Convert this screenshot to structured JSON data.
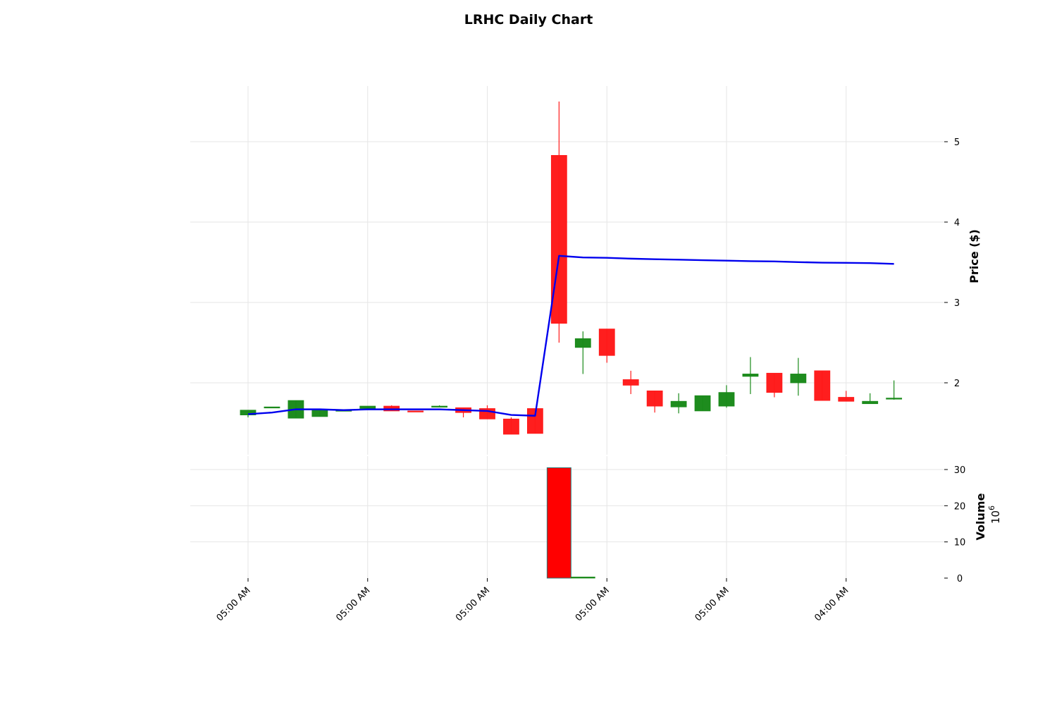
{
  "chart_data": {
    "type": "candlestick",
    "title": "LRHC Daily Chart",
    "price_panel": {
      "ylabel": "Price ($)",
      "ylim": [
        1.35,
        5.7
      ],
      "yticks": [
        2,
        3,
        4,
        5
      ],
      "grid": true,
      "axis_side": "right"
    },
    "volume_panel": {
      "ylabel": "Volume",
      "exponent_label": "10",
      "exponent_power": "6",
      "ylim": [
        0,
        31
      ],
      "yticks": [
        0,
        10,
        20,
        30
      ],
      "grid": true,
      "axis_side": "right"
    },
    "x_ticks": [
      {
        "index": 0,
        "label": "05:00 AM"
      },
      {
        "index": 5,
        "label": "05:00 AM"
      },
      {
        "index": 10,
        "label": "05:00 AM"
      },
      {
        "index": 15,
        "label": "05:00 AM"
      },
      {
        "index": 20,
        "label": "05:00 AM"
      },
      {
        "index": 25,
        "label": "04:00 AM"
      }
    ],
    "candles": [
      {
        "o": 1.6,
        "h": 1.66,
        "l": 1.57,
        "c": 1.66
      },
      {
        "o": 1.7,
        "h": 1.7,
        "l": 1.7,
        "c": 1.7
      },
      {
        "o": 1.56,
        "h": 1.78,
        "l": 1.56,
        "c": 1.78
      },
      {
        "o": 1.58,
        "h": 1.67,
        "l": 1.58,
        "c": 1.67
      },
      {
        "o": 1.66,
        "h": 1.67,
        "l": 1.65,
        "c": 1.66
      },
      {
        "o": 1.68,
        "h": 1.71,
        "l": 1.68,
        "c": 1.71
      },
      {
        "o": 1.71,
        "h": 1.72,
        "l": 1.65,
        "c": 1.65
      },
      {
        "o": 1.65,
        "h": 1.65,
        "l": 1.64,
        "c": 1.64
      },
      {
        "o": 1.71,
        "h": 1.72,
        "l": 1.7,
        "c": 1.71
      },
      {
        "o": 1.69,
        "h": 1.69,
        "l": 1.57,
        "c": 1.63
      },
      {
        "o": 1.68,
        "h": 1.72,
        "l": 1.55,
        "c": 1.55
      },
      {
        "o": 1.55,
        "h": 1.57,
        "l": 1.36,
        "c": 1.36
      },
      {
        "o": 1.68,
        "h": 1.68,
        "l": 1.37,
        "c": 1.37
      },
      {
        "o": 4.83,
        "h": 5.5,
        "l": 2.5,
        "c": 2.74
      },
      {
        "o": 2.44,
        "h": 2.64,
        "l": 2.11,
        "c": 2.55
      },
      {
        "o": 2.67,
        "h": 2.67,
        "l": 2.25,
        "c": 2.34
      },
      {
        "o": 2.04,
        "h": 2.15,
        "l": 1.86,
        "c": 1.97
      },
      {
        "o": 1.9,
        "h": 1.9,
        "l": 1.63,
        "c": 1.71
      },
      {
        "o": 1.7,
        "h": 1.87,
        "l": 1.62,
        "c": 1.77
      },
      {
        "o": 1.65,
        "h": 1.84,
        "l": 1.65,
        "c": 1.84
      },
      {
        "o": 1.71,
        "h": 1.97,
        "l": 1.69,
        "c": 1.88
      },
      {
        "o": 2.08,
        "h": 2.32,
        "l": 1.86,
        "c": 2.11
      },
      {
        "o": 2.12,
        "h": 2.12,
        "l": 1.82,
        "c": 1.88
      },
      {
        "o": 2.0,
        "h": 2.31,
        "l": 1.84,
        "c": 2.11
      },
      {
        "o": 2.15,
        "h": 2.15,
        "l": 1.78,
        "c": 1.78
      },
      {
        "o": 1.82,
        "h": 1.9,
        "l": 1.77,
        "c": 1.77
      },
      {
        "o": 1.74,
        "h": 1.87,
        "l": 1.74,
        "c": 1.77
      },
      {
        "o": 1.81,
        "h": 2.03,
        "l": 1.79,
        "c": 1.81
      }
    ],
    "moving_average": {
      "color": "#0000ee",
      "values": [
        1.61,
        1.63,
        1.67,
        1.67,
        1.66,
        1.67,
        1.67,
        1.67,
        1.67,
        1.66,
        1.65,
        1.6,
        1.59,
        3.58,
        3.56,
        3.555,
        3.545,
        3.538,
        3.532,
        3.526,
        3.52,
        3.514,
        3.51,
        3.502,
        3.495,
        3.493,
        3.49,
        3.48
      ]
    },
    "volume": [
      {
        "index": 13,
        "value": 30.5,
        "direction": "down"
      },
      {
        "index": 14,
        "value": 0.3,
        "direction": "up"
      }
    ],
    "colors": {
      "up": "#1a8a1a",
      "down": "#ff1a1a",
      "volume_down": "#ff0000",
      "volume_up_edge": "#1a8a1a",
      "grid": "#e6e6e6"
    }
  }
}
